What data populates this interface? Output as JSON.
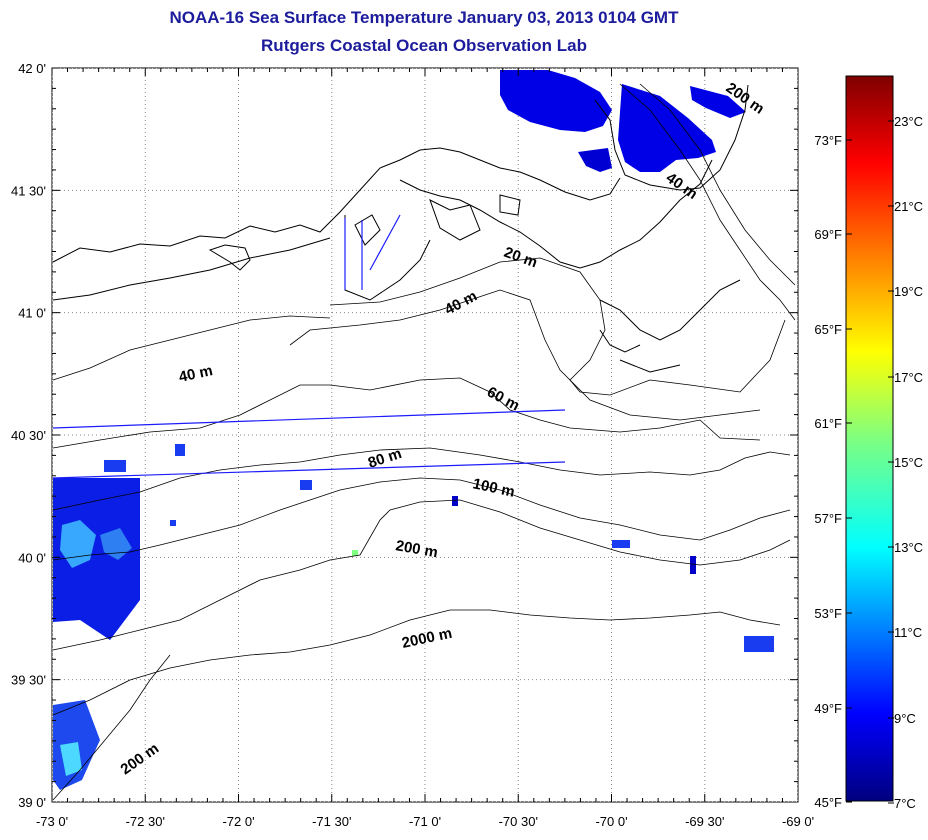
{
  "header": {
    "title": "NOAA-16 Sea Surface Temperature January 03, 2013 0104 GMT",
    "subtitle": "Rutgers Coastal Ocean Observation Lab"
  },
  "axes": {
    "lon_labels": [
      "-73 0'",
      "-72 30'",
      "-72 0'",
      "-71 30'",
      "-71 0'",
      "-70 30'",
      "-70 0'",
      "-69 30'",
      "-69 0'"
    ],
    "lat_labels": [
      "42 0'",
      "41 30'",
      "41 0'",
      "40 30'",
      "40 0'",
      "39 30'",
      "39 0'"
    ],
    "lon_range": [
      -73,
      -69
    ],
    "lat_range": [
      39,
      42
    ]
  },
  "colorbar": {
    "celsius_labels": [
      "23°C",
      "21°C",
      "19°C",
      "17°C",
      "15°C",
      "13°C",
      "11°C",
      "9°C",
      "7°C"
    ],
    "fahrenheit_labels": [
      "73°F",
      "69°F",
      "65°F",
      "61°F",
      "57°F",
      "53°F",
      "49°F",
      "45°F"
    ],
    "range_c": [
      7,
      24.5
    ],
    "colors": [
      "#00007f",
      "#0000ff",
      "#007fff",
      "#00ffff",
      "#7fff7f",
      "#ffff00",
      "#ff7f00",
      "#ff0000",
      "#7f0000"
    ]
  },
  "contours": {
    "labels": [
      "200 m",
      "40 m",
      "20 m",
      "40 m",
      "40 m",
      "60 m",
      "80 m",
      "100 m",
      "200 m",
      "2000 m",
      "200 m"
    ]
  }
}
